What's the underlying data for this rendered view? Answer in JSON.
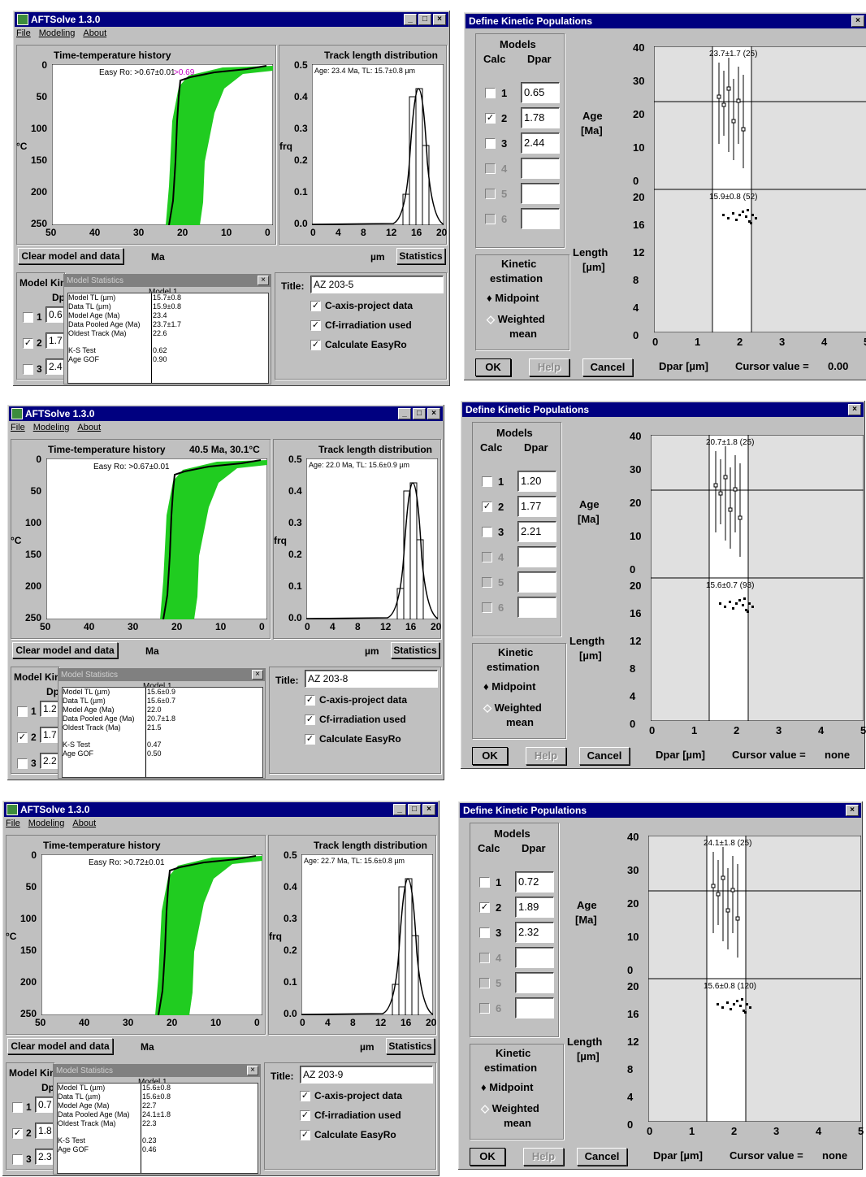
{
  "app": {
    "title": "AFTSolve 1.3.0",
    "menu": [
      "File",
      "Modeling",
      "About"
    ],
    "tt_title": "Time-temperature history",
    "tl_title": "Track length distribution",
    "clear_btn": "Clear model and data",
    "stats_btn": "Statistics",
    "ma": "Ma",
    "um": "µm",
    "degc": "°C",
    "frq": "frq",
    "title_label": "Title:",
    "opt1": "C-axis-project data",
    "opt2": "Cf-irradiation used",
    "opt3": "Calculate EasyRo",
    "model_kin": "Model Kin",
    "dp": "Dp",
    "stats_title": "Model Statistics",
    "model1": "Model 1",
    "stat_labels": [
      "Model TL (µm)",
      "Data TL (µm)",
      "Model Age (Ma)",
      "Data Pooled Age (Ma)",
      "Oldest Track (Ma)",
      "K-S Test",
      "Age GOF"
    ],
    "check": "✓",
    "close": "×"
  },
  "tt_axis": {
    "x": [
      "50",
      "40",
      "30",
      "20",
      "10",
      "0"
    ],
    "y": [
      "0",
      "50",
      "100",
      "150",
      "200",
      "250"
    ]
  },
  "tl_axis": {
    "x": [
      "0",
      "4",
      "8",
      "12",
      "16",
      "20"
    ],
    "y": [
      "0.5",
      "0.4",
      "0.3",
      "0.2",
      "0.1",
      "0.0"
    ]
  },
  "dlg": {
    "title": "Define Kinetic Populations",
    "models": "Models",
    "calc": "Calc",
    "dpar": "Dpar",
    "age": "Age",
    "agema": "[Ma]",
    "length": "Length",
    "lenum": "[µm]",
    "kin1": "Kinetic",
    "kin2": "estimation",
    "midpoint": "Midpoint",
    "weighted": "Weighted",
    "mean": "mean",
    "ok": "OK",
    "help": "Help",
    "cancel": "Cancel",
    "dpar_axis": "Dpar [µm]",
    "cursor": "Cursor value =",
    "age_ticks": [
      "40",
      "30",
      "20",
      "10",
      "0"
    ],
    "len_ticks": [
      "20",
      "16",
      "12",
      "8",
      "4",
      "0"
    ],
    "x_ticks": [
      "0",
      "1",
      "2",
      "3",
      "4",
      "5"
    ],
    "nums": [
      "1",
      "2",
      "3",
      "4",
      "5",
      "6"
    ]
  },
  "instances": [
    {
      "easyro": "Easy Ro: >0.67±0.01",
      "easyro2": ">0.69",
      "readout": "",
      "tl_label": "Age: 23.4 Ma, TL: 15.7±0.8 µm",
      "run_title": "AZ 203-5",
      "kin_vals": [
        "0.6",
        "1.7",
        "2.4"
      ],
      "stat_vals": [
        "15.7±0.8",
        "15.9±0.8",
        "23.4",
        "23.7±1.7",
        "22.6",
        "0.62",
        "0.90"
      ],
      "dpar": [
        "0.65",
        "1.78",
        "2.44",
        "",
        "",
        ""
      ],
      "age_label": "23.7±1.7 (25)",
      "len_label": "15.9±0.8 (52)",
      "cursor": "0.00"
    },
    {
      "easyro": "Easy Ro: >0.67±0.01",
      "easyro2": "",
      "readout": "40.5 Ma, 30.1°C",
      "tl_label": "Age: 22.0 Ma, TL: 15.6±0.9 µm",
      "run_title": "AZ 203-8",
      "kin_vals": [
        "1.2",
        "1.7",
        "2.2"
      ],
      "stat_vals": [
        "15.6±0.9",
        "15.6±0.7",
        "22.0",
        "20.7±1.8",
        "21.5",
        "0.47",
        "0.50"
      ],
      "dpar": [
        "1.20",
        "1.77",
        "2.21",
        "",
        "",
        ""
      ],
      "age_label": "20.7±1.8 (25)",
      "len_label": "15.6±0.7 (93)",
      "cursor": "none"
    },
    {
      "easyro": "Easy Ro: >0.72±0.01",
      "easyro2": "",
      "readout": "",
      "tl_label": "Age: 22.7 Ma, TL: 15.6±0.8 µm",
      "run_title": "AZ 203-9",
      "kin_vals": [
        "0.7",
        "1.8",
        "2.3"
      ],
      "stat_vals": [
        "15.6±0.8",
        "15.6±0.8",
        "22.7",
        "24.1±1.8",
        "22.3",
        "0.23",
        "0.46"
      ],
      "dpar": [
        "0.72",
        "1.89",
        "2.32",
        "",
        "",
        ""
      ],
      "age_label": "24.1±1.8 (25)",
      "len_label": "15.6±0.8 (120)",
      "cursor": "none"
    }
  ],
  "colors": {
    "envelope": "#20cc20",
    "titlebar": "#000080",
    "face": "#c0c0c0",
    "plot_bg": "#e0e0e0"
  }
}
